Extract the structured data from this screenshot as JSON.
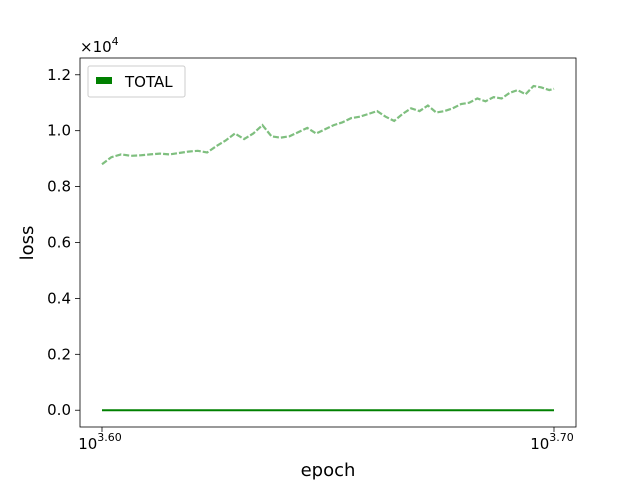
{
  "chart_data": {
    "type": "line",
    "title": "",
    "xlabel": "epoch",
    "ylabel": "loss",
    "x_scale": "log",
    "xlim": [
      3981,
      5012
    ],
    "ylim": [
      -600,
      12600
    ],
    "y_offset_label": "×10",
    "y_offset_exponent": "4",
    "y_ticks": [
      0,
      2000,
      4000,
      6000,
      8000,
      10000,
      12000
    ],
    "y_tick_labels": [
      "0.0",
      "0.2",
      "0.4",
      "0.6",
      "0.8",
      "1.0",
      "1.2"
    ],
    "x_ticks": [
      3981,
      5012
    ],
    "x_tick_labels": [
      {
        "base": "10",
        "exp": "3.60"
      },
      {
        "base": "10",
        "exp": "3.70"
      }
    ],
    "grid": false,
    "legend_position": "top-left",
    "legend": [
      {
        "label": "TOTAL",
        "color": "#008000"
      }
    ],
    "series": [
      {
        "name": "TOTAL",
        "color": "#008000",
        "style": "solid",
        "x": [
          3981,
          5012
        ],
        "values": [
          0,
          0
        ]
      },
      {
        "color": "#7fbf7f",
        "style": "dashed",
        "x": [
          3981,
          4000,
          4020,
          4040,
          4060,
          4080,
          4100,
          4120,
          4140,
          4160,
          4180,
          4200,
          4220,
          4240,
          4260,
          4280,
          4300,
          4320,
          4340,
          4360,
          4380,
          4400,
          4420,
          4440,
          4460,
          4480,
          4500,
          4520,
          4540,
          4560,
          4580,
          4600,
          4620,
          4640,
          4660,
          4680,
          4700,
          4720,
          4740,
          4760,
          4780,
          4800,
          4820,
          4840,
          4860,
          4880,
          4900,
          4920,
          4940,
          4960,
          4980,
          5000,
          5012
        ],
        "values": [
          8800,
          9050,
          9150,
          9100,
          9120,
          9150,
          9180,
          9150,
          9200,
          9250,
          9280,
          9220,
          9450,
          9650,
          9900,
          9700,
          9900,
          10200,
          9800,
          9750,
          9800,
          9950,
          10100,
          9900,
          10050,
          10200,
          10300,
          10450,
          10500,
          10600,
          10700,
          10500,
          10350,
          10600,
          10800,
          10700,
          10900,
          10650,
          10700,
          10800,
          10950,
          11000,
          11150,
          11050,
          11200,
          11150,
          11350,
          11450,
          11300,
          11600,
          11550,
          11450,
          11500
        ]
      }
    ]
  }
}
